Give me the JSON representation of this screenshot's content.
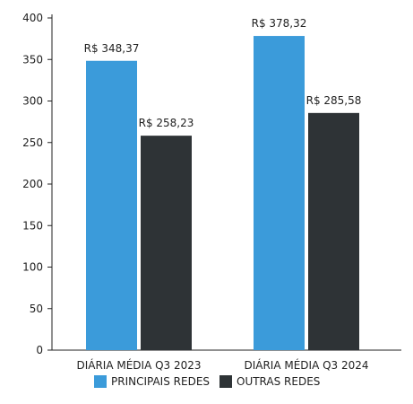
{
  "chart_data": {
    "type": "bar",
    "title": "",
    "xlabel": "",
    "ylabel": "",
    "categories": [
      "DIÁRIA MÉDIA Q3 2023",
      "DIÁRIA MÉDIA Q3 2024"
    ],
    "series": [
      {
        "name": "PRINCIPAIS REDES",
        "color": "#3B9BDA",
        "values": [
          348.37,
          378.32
        ],
        "labels": [
          "R$ 348,37",
          "R$ 378,32"
        ]
      },
      {
        "name": "OUTRAS REDES",
        "color": "#2E3336",
        "values": [
          258.23,
          285.58
        ],
        "labels": [
          "R$ 258,23",
          "R$ 285,58"
        ]
      }
    ],
    "ylim": [
      0,
      400
    ],
    "yticks": [
      0,
      50,
      100,
      150,
      200,
      250,
      300,
      350,
      400
    ],
    "grid": false,
    "legend": "bottom-center"
  }
}
